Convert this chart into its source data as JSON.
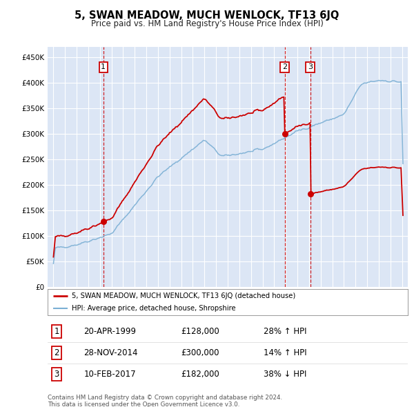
{
  "title": "5, SWAN MEADOW, MUCH WENLOCK, TF13 6JQ",
  "subtitle": "Price paid vs. HM Land Registry's House Price Index (HPI)",
  "legend_line1": "5, SWAN MEADOW, MUCH WENLOCK, TF13 6JQ (detached house)",
  "legend_line2": "HPI: Average price, detached house, Shropshire",
  "footer1": "Contains HM Land Registry data © Crown copyright and database right 2024.",
  "footer2": "This data is licensed under the Open Government Licence v3.0.",
  "transactions": [
    {
      "num": 1,
      "date": "20-APR-1999",
      "price": 128000,
      "hpi_pct": "28% ↑ HPI",
      "year": 1999.3
    },
    {
      "num": 2,
      "date": "28-NOV-2014",
      "price": 300000,
      "hpi_pct": "14% ↑ HPI",
      "year": 2014.9
    },
    {
      "num": 3,
      "date": "10-FEB-2017",
      "price": 182000,
      "hpi_pct": "38% ↓ HPI",
      "year": 2017.1
    }
  ],
  "price_color": "#cc0000",
  "hpi_color": "#7bafd4",
  "background_color": "#dce6f5",
  "grid_color": "#ffffff",
  "vline_color": "#cc0000",
  "ylim": [
    0,
    470000
  ],
  "yticks": [
    0,
    50000,
    100000,
    150000,
    200000,
    250000,
    300000,
    350000,
    400000,
    450000
  ],
  "xlim_start": 1994.5,
  "xlim_end": 2025.5,
  "xticks": [
    1995,
    1996,
    1997,
    1998,
    1999,
    2000,
    2001,
    2002,
    2003,
    2004,
    2005,
    2006,
    2007,
    2008,
    2009,
    2010,
    2011,
    2012,
    2013,
    2014,
    2015,
    2016,
    2017,
    2018,
    2019,
    2020,
    2021,
    2022,
    2023,
    2024,
    2025
  ]
}
